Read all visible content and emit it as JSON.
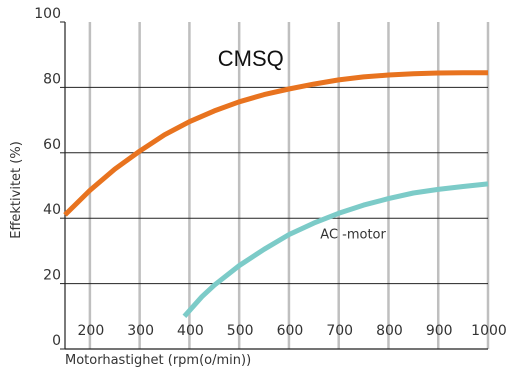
{
  "chart_data": {
    "type": "line",
    "xlabel": "Motorhastighet (rpm(o/min))",
    "ylabel": "Effektivitet (%)",
    "xlim": [
      150,
      1000
    ],
    "ylim": [
      0,
      100
    ],
    "x_ticks": [
      "200",
      "300",
      "400",
      "500",
      "600",
      "700",
      "800",
      "900",
      "1000"
    ],
    "y_ticks": [
      "0",
      "20",
      "40",
      "60",
      "80",
      "100"
    ],
    "grid": true,
    "series": [
      {
        "name": "CMSQ",
        "color": "#e8731f",
        "x": [
          150,
          200,
          250,
          300,
          350,
          400,
          450,
          500,
          550,
          600,
          650,
          700,
          750,
          800,
          850,
          900,
          950,
          1000
        ],
        "y": [
          41,
          48.5,
          55,
          60.5,
          65.5,
          69.5,
          72.8,
          75.6,
          77.8,
          79.5,
          81,
          82.3,
          83.2,
          83.8,
          84.2,
          84.4,
          84.5,
          84.5
        ]
      },
      {
        "name": "AC -motor",
        "color": "#7ccbc8",
        "x": [
          390,
          425,
          450,
          500,
          550,
          600,
          650,
          700,
          750,
          800,
          850,
          900,
          950,
          1000
        ],
        "y": [
          10,
          16,
          19.5,
          25.5,
          30.5,
          35,
          38.5,
          41.5,
          44,
          46,
          47.7,
          48.8,
          49.7,
          50.5
        ]
      }
    ]
  }
}
